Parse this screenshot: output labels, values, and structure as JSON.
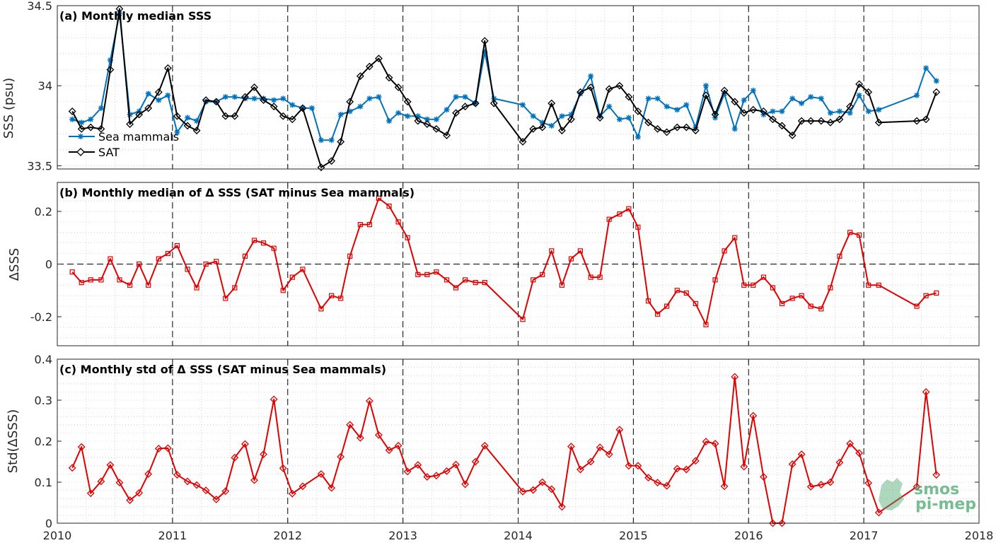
{
  "colors": {
    "sea_mammals": "#0072BD",
    "sat": "#000000",
    "diff": "#E00000",
    "logo": "#4aa86f"
  },
  "logo": {
    "line1": "smos",
    "line2": "pi-mep"
  },
  "chart_data": [
    {
      "type": "line",
      "title": "(a) Monthly median SSS",
      "ylabel": "SSS (psu)",
      "xlim": [
        2010,
        2018
      ],
      "ylim": [
        33.48,
        34.5
      ],
      "yticks": [
        33.5,
        34,
        34.5
      ],
      "ytick_labels": [
        "33.5",
        "34",
        "34.5"
      ],
      "xticks": [
        2010,
        2011,
        2012,
        2013,
        2014,
        2015,
        2016,
        2017,
        2018
      ],
      "xtick_labels": [],
      "grid": true,
      "legend": "bottom-left",
      "series": [
        {
          "name": "Sea mammals",
          "marker": "star",
          "x": [
            2010.13,
            2010.21,
            2010.29,
            2010.38,
            2010.46,
            2010.54,
            2010.63,
            2010.71,
            2010.79,
            2010.88,
            2010.96,
            2011.04,
            2011.13,
            2011.21,
            2011.29,
            2011.38,
            2011.46,
            2011.54,
            2011.63,
            2011.71,
            2011.79,
            2011.88,
            2011.96,
            2012.04,
            2012.13,
            2012.21,
            2012.29,
            2012.38,
            2012.46,
            2012.54,
            2012.63,
            2012.71,
            2012.79,
            2012.88,
            2012.96,
            2013.04,
            2013.13,
            2013.21,
            2013.29,
            2013.38,
            2013.46,
            2013.54,
            2013.63,
            2013.71,
            2013.79,
            2014.04,
            2014.13,
            2014.21,
            2014.29,
            2014.38,
            2014.46,
            2014.54,
            2014.63,
            2014.71,
            2014.79,
            2014.88,
            2014.96,
            2015.04,
            2015.13,
            2015.21,
            2015.29,
            2015.38,
            2015.46,
            2015.54,
            2015.63,
            2015.71,
            2015.79,
            2015.88,
            2015.96,
            2016.04,
            2016.13,
            2016.21,
            2016.29,
            2016.38,
            2016.46,
            2016.54,
            2016.63,
            2016.71,
            2016.79,
            2016.88,
            2016.96,
            2017.04,
            2017.13,
            2017.46,
            2017.54,
            2017.63
          ],
          "y": [
            33.79,
            33.77,
            33.79,
            33.86,
            34.16,
            34.45,
            33.82,
            33.84,
            33.95,
            33.91,
            33.94,
            33.71,
            33.8,
            33.78,
            33.9,
            33.9,
            33.93,
            33.93,
            33.92,
            33.92,
            33.92,
            33.91,
            33.92,
            33.88,
            33.86,
            33.86,
            33.66,
            33.66,
            33.82,
            33.84,
            33.87,
            33.92,
            33.93,
            33.78,
            33.83,
            33.81,
            33.81,
            33.79,
            33.79,
            33.85,
            33.93,
            33.93,
            33.89,
            34.21,
            33.92,
            33.88,
            33.81,
            33.77,
            33.75,
            33.81,
            33.82,
            33.95,
            34.06,
            33.81,
            33.87,
            33.79,
            33.8,
            33.68,
            33.92,
            33.92,
            33.87,
            33.85,
            33.88,
            33.74,
            34.0,
            33.8,
            33.95,
            33.73,
            33.91,
            33.97,
            33.82,
            33.84,
            33.84,
            33.92,
            33.89,
            33.93,
            33.92,
            33.83,
            33.84,
            33.83,
            33.94,
            33.84,
            33.85,
            33.94,
            34.11,
            34.03
          ]
        },
        {
          "name": "SAT",
          "marker": "diamond",
          "x": [
            2010.13,
            2010.21,
            2010.29,
            2010.38,
            2010.46,
            2010.54,
            2010.63,
            2010.71,
            2010.79,
            2010.88,
            2010.96,
            2011.04,
            2011.13,
            2011.21,
            2011.29,
            2011.38,
            2011.46,
            2011.54,
            2011.63,
            2011.71,
            2011.79,
            2011.88,
            2011.96,
            2012.04,
            2012.13,
            2012.29,
            2012.38,
            2012.46,
            2012.54,
            2012.63,
            2012.71,
            2012.79,
            2012.88,
            2012.96,
            2013.04,
            2013.13,
            2013.21,
            2013.29,
            2013.38,
            2013.46,
            2013.54,
            2013.63,
            2013.71,
            2013.79,
            2014.04,
            2014.13,
            2014.21,
            2014.29,
            2014.38,
            2014.46,
            2014.54,
            2014.63,
            2014.71,
            2014.79,
            2014.88,
            2014.96,
            2015.04,
            2015.13,
            2015.21,
            2015.29,
            2015.38,
            2015.46,
            2015.54,
            2015.63,
            2015.71,
            2015.79,
            2015.88,
            2015.96,
            2016.04,
            2016.13,
            2016.21,
            2016.29,
            2016.38,
            2016.46,
            2016.54,
            2016.63,
            2016.71,
            2016.79,
            2016.88,
            2016.96,
            2017.04,
            2017.13,
            2017.46,
            2017.54,
            2017.63
          ],
          "y": [
            33.84,
            33.73,
            33.74,
            33.73,
            34.1,
            34.48,
            33.76,
            33.82,
            33.86,
            33.96,
            34.11,
            33.81,
            33.75,
            33.72,
            33.91,
            33.9,
            33.81,
            33.81,
            33.93,
            33.99,
            33.91,
            33.87,
            33.81,
            33.79,
            33.86,
            33.49,
            33.53,
            33.65,
            33.9,
            34.06,
            34.12,
            34.17,
            34.05,
            33.99,
            33.9,
            33.78,
            33.76,
            33.73,
            33.69,
            33.83,
            33.87,
            33.89,
            34.28,
            33.89,
            33.65,
            33.73,
            33.74,
            33.89,
            33.72,
            33.79,
            33.96,
            33.99,
            33.8,
            33.98,
            34.0,
            33.93,
            33.84,
            33.77,
            33.73,
            33.71,
            33.74,
            33.74,
            33.72,
            33.94,
            33.82,
            33.97,
            33.9,
            33.83,
            33.85,
            33.84,
            33.79,
            33.75,
            33.69,
            33.78,
            33.78,
            33.78,
            33.77,
            33.79,
            33.87,
            34.01,
            33.96,
            33.77,
            33.78,
            33.79,
            33.96
          ]
        }
      ]
    },
    {
      "type": "line",
      "title": "(b) Monthly median of Δ SSS (SAT minus Sea mammals)",
      "ylabel": "ΔSSS",
      "xlim": [
        2010,
        2018
      ],
      "ylim": [
        -0.31,
        0.31
      ],
      "yticks": [
        -0.2,
        0,
        0.2
      ],
      "ytick_labels": [
        "-0.2",
        "0",
        "0.2"
      ],
      "xticks": [
        2010,
        2011,
        2012,
        2013,
        2014,
        2015,
        2016,
        2017,
        2018
      ],
      "xtick_labels": [],
      "grid": true,
      "series": [
        {
          "marker": "square",
          "x": [
            2010.13,
            2010.21,
            2010.29,
            2010.38,
            2010.46,
            2010.54,
            2010.63,
            2010.71,
            2010.79,
            2010.88,
            2010.96,
            2011.04,
            2011.13,
            2011.21,
            2011.29,
            2011.38,
            2011.46,
            2011.54,
            2011.63,
            2011.71,
            2011.79,
            2011.88,
            2011.96,
            2012.04,
            2012.13,
            2012.29,
            2012.38,
            2012.46,
            2012.54,
            2012.63,
            2012.71,
            2012.79,
            2012.88,
            2012.96,
            2013.04,
            2013.13,
            2013.21,
            2013.29,
            2013.38,
            2013.46,
            2013.54,
            2013.63,
            2013.71,
            2014.04,
            2014.13,
            2014.21,
            2014.29,
            2014.38,
            2014.46,
            2014.54,
            2014.63,
            2014.71,
            2014.79,
            2014.88,
            2014.96,
            2015.04,
            2015.13,
            2015.21,
            2015.29,
            2015.38,
            2015.46,
            2015.54,
            2015.63,
            2015.71,
            2015.79,
            2015.88,
            2015.96,
            2016.04,
            2016.13,
            2016.21,
            2016.29,
            2016.38,
            2016.46,
            2016.54,
            2016.63,
            2016.71,
            2016.79,
            2016.88,
            2016.96,
            2017.04,
            2017.13,
            2017.46,
            2017.54,
            2017.63
          ],
          "y": [
            -0.03,
            -0.07,
            -0.06,
            -0.06,
            0.02,
            -0.06,
            -0.08,
            0.0,
            -0.08,
            0.02,
            0.04,
            0.07,
            -0.02,
            -0.09,
            0.0,
            0.01,
            -0.13,
            -0.09,
            0.03,
            0.09,
            0.08,
            0.06,
            -0.1,
            -0.05,
            -0.02,
            -0.17,
            -0.12,
            -0.13,
            0.03,
            0.15,
            0.15,
            0.25,
            0.22,
            0.16,
            0.1,
            -0.04,
            -0.04,
            -0.03,
            -0.06,
            -0.09,
            -0.06,
            -0.07,
            -0.07,
            -0.21,
            -0.06,
            -0.04,
            0.05,
            -0.08,
            0.02,
            0.05,
            -0.05,
            -0.05,
            0.17,
            0.19,
            0.21,
            0.14,
            -0.14,
            -0.19,
            -0.16,
            -0.1,
            -0.11,
            -0.15,
            -0.23,
            -0.06,
            0.05,
            0.1,
            -0.08,
            -0.08,
            -0.05,
            -0.09,
            -0.15,
            -0.13,
            -0.12,
            -0.16,
            -0.17,
            -0.09,
            0.03,
            0.12,
            0.11,
            -0.08,
            -0.08,
            -0.16,
            -0.12,
            -0.11
          ]
        }
      ]
    },
    {
      "type": "line",
      "title": "(c) Monthly std of Δ SSS (SAT minus Sea mammals)",
      "ylabel": "Std(ΔSSS)",
      "xlim": [
        2010,
        2018
      ],
      "ylim": [
        0,
        0.4
      ],
      "yticks": [
        0,
        0.1,
        0.2,
        0.3,
        0.4
      ],
      "ytick_labels": [
        "0",
        "0.1",
        "0.2",
        "0.3",
        "0.4"
      ],
      "xticks": [
        2010,
        2011,
        2012,
        2013,
        2014,
        2015,
        2016,
        2017,
        2018
      ],
      "xtick_labels": [
        "2010",
        "2011",
        "2012",
        "2013",
        "2014",
        "2015",
        "2016",
        "2017",
        "2018"
      ],
      "grid": true,
      "series": [
        {
          "marker": "diamond",
          "x": [
            2010.13,
            2010.21,
            2010.29,
            2010.38,
            2010.46,
            2010.54,
            2010.63,
            2010.71,
            2010.79,
            2010.88,
            2010.96,
            2011.04,
            2011.13,
            2011.21,
            2011.29,
            2011.38,
            2011.46,
            2011.54,
            2011.63,
            2011.71,
            2011.79,
            2011.88,
            2011.96,
            2012.04,
            2012.13,
            2012.29,
            2012.38,
            2012.46,
            2012.54,
            2012.63,
            2012.71,
            2012.79,
            2012.88,
            2012.96,
            2013.04,
            2013.13,
            2013.21,
            2013.29,
            2013.38,
            2013.46,
            2013.54,
            2013.63,
            2013.71,
            2014.04,
            2014.13,
            2014.21,
            2014.29,
            2014.38,
            2014.46,
            2014.54,
            2014.63,
            2014.71,
            2014.79,
            2014.88,
            2014.96,
            2015.04,
            2015.13,
            2015.21,
            2015.29,
            2015.38,
            2015.46,
            2015.54,
            2015.63,
            2015.71,
            2015.79,
            2015.88,
            2015.96,
            2016.04,
            2016.13,
            2016.21,
            2016.29,
            2016.38,
            2016.46,
            2016.54,
            2016.63,
            2016.71,
            2016.79,
            2016.88,
            2016.96,
            2017.04,
            2017.13,
            2017.46,
            2017.54,
            2017.63
          ],
          "y": [
            0.135,
            0.186,
            0.073,
            0.102,
            0.142,
            0.099,
            0.056,
            0.074,
            0.12,
            0.182,
            0.183,
            0.118,
            0.102,
            0.093,
            0.08,
            0.058,
            0.078,
            0.16,
            0.193,
            0.105,
            0.168,
            0.302,
            0.134,
            0.072,
            0.09,
            0.12,
            0.086,
            0.162,
            0.24,
            0.208,
            0.298,
            0.215,
            0.178,
            0.189,
            0.126,
            0.142,
            0.113,
            0.116,
            0.127,
            0.143,
            0.095,
            0.15,
            0.189,
            0.077,
            0.081,
            0.1,
            0.083,
            0.04,
            0.187,
            0.131,
            0.15,
            0.185,
            0.168,
            0.228,
            0.14,
            0.14,
            0.111,
            0.099,
            0.091,
            0.133,
            0.131,
            0.152,
            0.199,
            0.194,
            0.09,
            0.357,
            0.138,
            0.262,
            0.113,
            0.0,
            0.0,
            0.144,
            0.168,
            0.089,
            0.094,
            0.1,
            0.148,
            0.194,
            0.171,
            0.098,
            0.026,
            0.089,
            0.32,
            0.118
          ]
        }
      ]
    }
  ]
}
